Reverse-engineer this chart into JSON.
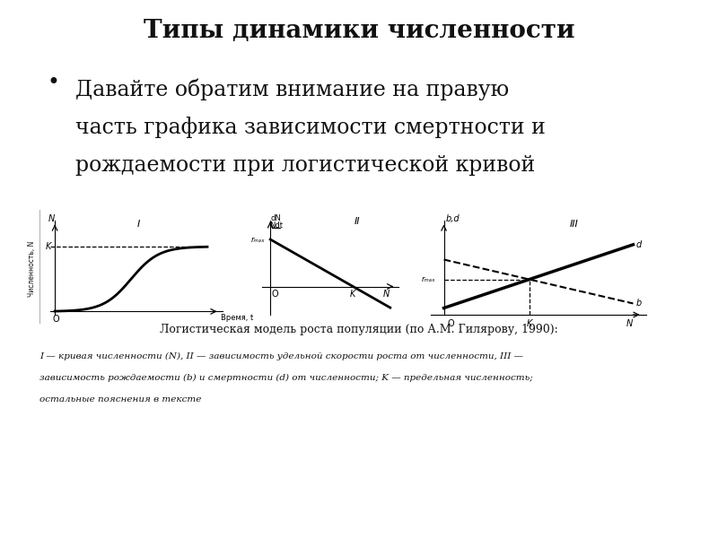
{
  "title": "Типы динамики численности",
  "bullet_text_lines": [
    "Давайте обратим внимание на правую",
    "часть графика зависимости смертности и",
    "рождаемости при логистической кривой"
  ],
  "caption": "Логистическая модель роста популяции (по А.М. Гилярову, 1990):",
  "footnote_lines": [
    "I — кривая численности (N), II — зависимость удельной скорости роста от численности, III —",
    "зависимость рождаемости (b) и смертности (d) от численности; K — предельная численность;",
    "остальные пояснения в тексте"
  ],
  "bg_color": "#ffffff",
  "text_color": "#111111",
  "title_fontsize": 20,
  "bullet_fontsize": 17,
  "caption_fontsize": 9,
  "footnote_fontsize": 7.5
}
